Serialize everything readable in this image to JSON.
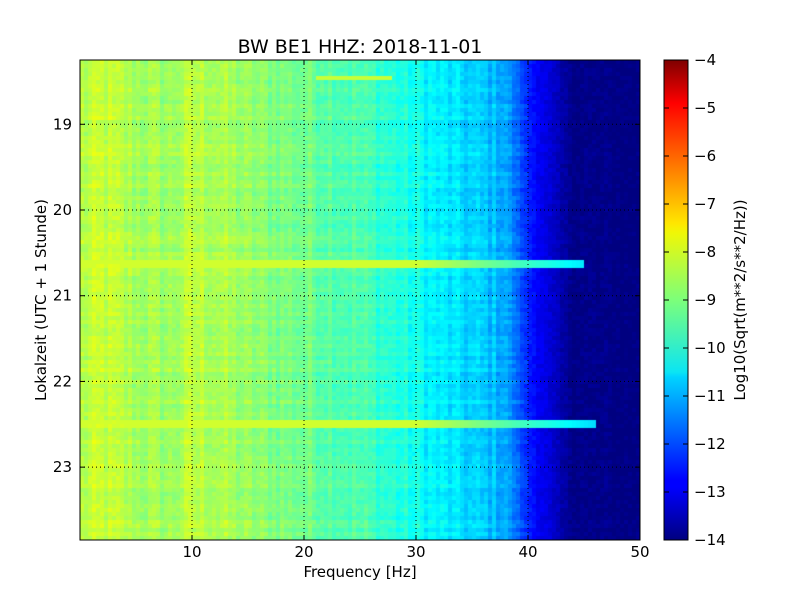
{
  "chart_data": {
    "type": "heatmap",
    "title": "BW BE1 HHZ: 2018-11-01",
    "xlabel": "Frequency [Hz]",
    "ylabel": "Lokalzeit (UTC + 1 Stunde)",
    "xlim": [
      0,
      50
    ],
    "ylim": [
      18.25,
      23.85
    ],
    "y_inverted": true,
    "x_ticks": [
      10,
      20,
      30,
      40,
      50
    ],
    "x_tick_labels": [
      "10",
      "20",
      "30",
      "40",
      "50"
    ],
    "y_ticks": [
      19,
      20,
      21,
      22,
      23
    ],
    "y_tick_labels": [
      "19",
      "20",
      "21",
      "22",
      "23"
    ],
    "grid": true,
    "colormap": "jet",
    "colorbar": {
      "label": "Log10(Sqrt(m**2/s**2/Hz))",
      "range": [
        -14,
        -4
      ],
      "ticks": [
        -4,
        -5,
        -6,
        -7,
        -8,
        -9,
        -10,
        -11,
        -12,
        -13,
        -14
      ],
      "tick_labels": [
        "−4",
        "−5",
        "−6",
        "−7",
        "−8",
        "−9",
        "−10",
        "−11",
        "−12",
        "−13",
        "−14"
      ]
    },
    "spectrum_profile": {
      "frequency_hz": [
        0,
        2,
        5,
        8,
        10,
        12,
        15,
        20,
        25,
        30,
        32,
        35,
        38,
        40,
        42,
        43,
        44,
        50
      ],
      "log10_amplitude": [
        -8.5,
        -8.3,
        -8.6,
        -8.7,
        -8.4,
        -8.5,
        -8.8,
        -9.1,
        -9.5,
        -10.1,
        -10.4,
        -10.7,
        -11.0,
        -12.4,
        -13.2,
        -13.6,
        -13.9,
        -14.0
      ]
    },
    "bright_bands": [
      {
        "time": 20.63,
        "freq_range": [
          0,
          45
        ],
        "log10_amplitude": -8.2
      },
      {
        "time": 22.49,
        "freq_range": [
          0,
          46
        ],
        "log10_amplitude": -8.2
      },
      {
        "time": 18.45,
        "freq_range": [
          21,
          28
        ],
        "log10_amplitude": -8.3
      }
    ]
  }
}
